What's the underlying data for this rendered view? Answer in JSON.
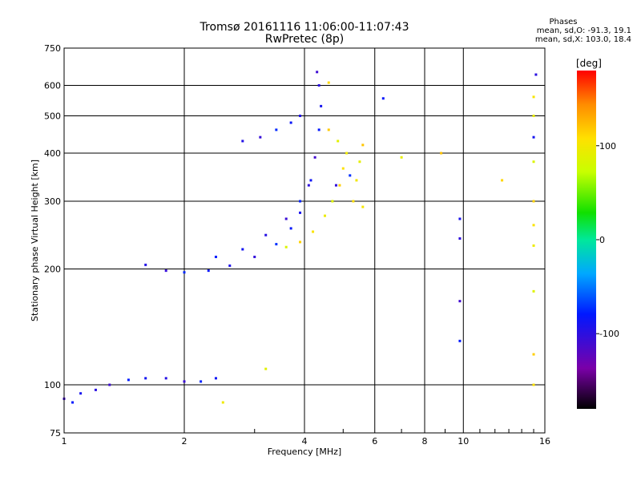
{
  "header": {
    "title_line1": "Tromsø 20161116 11:06:00-11:07:43",
    "title_line2": "RwPretec (8p)",
    "stats_title": "Phases",
    "stats_line1": "mean, sd,O: -91.3, 19.1",
    "stats_line2": "mean, sd,X: 103.0, 18.4"
  },
  "chart_data": {
    "type": "scatter",
    "xlabel": "Frequency [MHz]",
    "ylabel": "Stationary phase Virtual Height [km]",
    "x_scale": "log",
    "y_scale": "log",
    "xlim": [
      1,
      16
    ],
    "ylim": [
      75,
      750
    ],
    "x_ticks": [
      1,
      2,
      4,
      6,
      8,
      10,
      16
    ],
    "y_ticks": [
      75,
      100,
      200,
      300,
      400,
      500,
      600,
      750
    ],
    "grid": true,
    "colorbar": {
      "label": "[deg]",
      "range": [
        -180,
        180
      ],
      "ticks": [
        100,
        0,
        -100
      ]
    },
    "series": [
      {
        "mode": "O",
        "phase_mean": -91.3,
        "phase_sd": 19.1,
        "points": [
          [
            1.0,
            92
          ],
          [
            1.05,
            90
          ],
          [
            1.1,
            95
          ],
          [
            1.2,
            97
          ],
          [
            1.3,
            100
          ],
          [
            1.45,
            103
          ],
          [
            1.6,
            104
          ],
          [
            1.8,
            104
          ],
          [
            2.0,
            102
          ],
          [
            2.2,
            102
          ],
          [
            2.4,
            104
          ],
          [
            1.6,
            205
          ],
          [
            1.8,
            198
          ],
          [
            2.0,
            196
          ],
          [
            2.3,
            198
          ],
          [
            2.6,
            204
          ],
          [
            3.0,
            215
          ],
          [
            3.4,
            232
          ],
          [
            3.7,
            255
          ],
          [
            3.9,
            280
          ],
          [
            4.1,
            330
          ],
          [
            4.25,
            390
          ],
          [
            4.35,
            460
          ],
          [
            4.4,
            530
          ],
          [
            4.35,
            600
          ],
          [
            4.3,
            650
          ],
          [
            2.4,
            215
          ],
          [
            2.8,
            225
          ],
          [
            3.2,
            245
          ],
          [
            3.6,
            270
          ],
          [
            3.9,
            300
          ],
          [
            4.15,
            340
          ],
          [
            2.8,
            430
          ],
          [
            3.1,
            440
          ],
          [
            3.4,
            460
          ],
          [
            3.7,
            480
          ],
          [
            3.9,
            500
          ],
          [
            4.8,
            330
          ],
          [
            5.2,
            350
          ],
          [
            6.3,
            555
          ],
          [
            9.8,
            270
          ],
          [
            9.8,
            240
          ],
          [
            9.8,
            165
          ],
          [
            9.8,
            130
          ],
          [
            15.0,
            440
          ],
          [
            15.2,
            640
          ]
        ]
      },
      {
        "mode": "X",
        "phase_mean": 103.0,
        "phase_sd": 18.4,
        "points": [
          [
            3.6,
            228
          ],
          [
            3.9,
            235
          ],
          [
            4.2,
            250
          ],
          [
            4.5,
            275
          ],
          [
            4.7,
            300
          ],
          [
            4.9,
            330
          ],
          [
            5.0,
            365
          ],
          [
            5.1,
            400
          ],
          [
            4.85,
            430
          ],
          [
            4.6,
            460
          ],
          [
            5.3,
            300
          ],
          [
            5.4,
            340
          ],
          [
            5.5,
            380
          ],
          [
            5.6,
            420
          ],
          [
            4.6,
            610
          ],
          [
            5.6,
            290
          ],
          [
            7.0,
            390
          ],
          [
            8.8,
            400
          ],
          [
            12.5,
            340
          ],
          [
            15.0,
            560
          ],
          [
            15.0,
            500
          ],
          [
            15.0,
            380
          ],
          [
            15.0,
            300
          ],
          [
            15.0,
            260
          ],
          [
            15.0,
            230
          ],
          [
            15.0,
            175
          ],
          [
            15.0,
            120
          ],
          [
            15.0,
            100
          ],
          [
            2.5,
            90
          ],
          [
            3.2,
            110
          ]
        ]
      }
    ]
  }
}
